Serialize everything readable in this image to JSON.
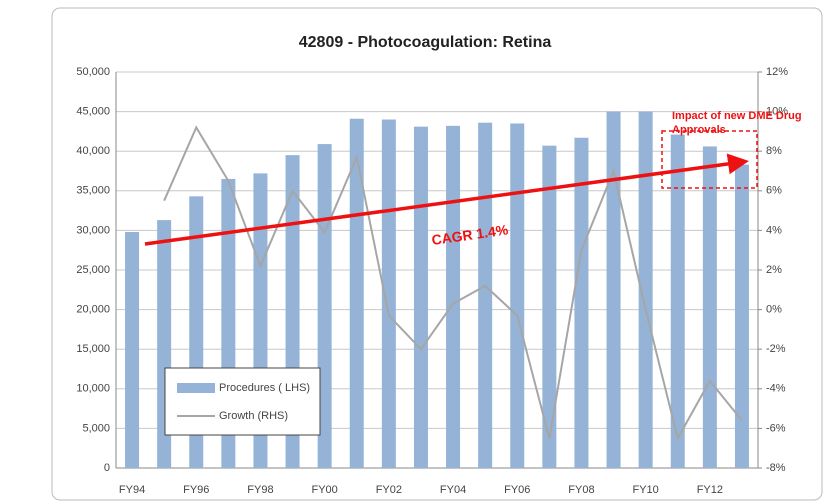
{
  "chart_data": {
    "type": "bar-line",
    "title": "42809 - Photocoagulation: Retina",
    "categories": [
      "FY94",
      null,
      "FY96",
      null,
      "FY98",
      null,
      "FY00",
      null,
      "FY02",
      null,
      "FY04",
      null,
      "FY06",
      null,
      "FY08",
      null,
      "FY10",
      null,
      "FY12",
      null
    ],
    "series": [
      {
        "name": "Procedures ( LHS)",
        "color": "#95b3d7",
        "type": "bar",
        "axis": "y",
        "values": [
          29800,
          31300,
          34300,
          36500,
          37200,
          39500,
          40900,
          44100,
          44000,
          43100,
          43200,
          43600,
          43500,
          40700,
          41700,
          45000,
          45000,
          42100,
          40600,
          38300
        ]
      },
      {
        "name": "Growth (RHS)",
        "color": "#a6a6a6",
        "type": "line",
        "axis": "y2",
        "values": [
          null,
          5.5,
          9.2,
          6.5,
          2.2,
          6.0,
          3.9,
          7.7,
          -0.3,
          -2.0,
          0.3,
          1.2,
          -0.3,
          -6.5,
          3.0,
          7.0,
          0.0,
          -6.5,
          -3.6,
          -5.6
        ]
      }
    ],
    "ylim": [
      0,
      50000
    ],
    "yticks": [
      {
        "value": 0,
        "label": "0"
      },
      {
        "value": 5000,
        "label": "5,000"
      },
      {
        "value": 10000,
        "label": "10,000"
      },
      {
        "value": 15000,
        "label": "15,000"
      },
      {
        "value": 20000,
        "label": "20,000"
      },
      {
        "value": 25000,
        "label": "25,000"
      },
      {
        "value": 30000,
        "label": "30,000"
      },
      {
        "value": 35000,
        "label": "35,000"
      },
      {
        "value": 40000,
        "label": "40,000"
      },
      {
        "value": 45000,
        "label": "45,000"
      },
      {
        "value": 50000,
        "label": "50,000"
      }
    ],
    "y2lim": [
      -8,
      12
    ],
    "y2ticks": [
      {
        "value": -8,
        "label": "-8%"
      },
      {
        "value": -6,
        "label": "-6%"
      },
      {
        "value": -4,
        "label": "-4%"
      },
      {
        "value": -2,
        "label": "-2%"
      },
      {
        "value": 0,
        "label": "0%"
      },
      {
        "value": 2,
        "label": "2%"
      },
      {
        "value": 4,
        "label": "4%"
      },
      {
        "value": 6,
        "label": "6%"
      },
      {
        "value": 8,
        "label": "8%"
      },
      {
        "value": 10,
        "label": "10%"
      },
      {
        "value": 12,
        "label": "12%"
      }
    ],
    "grid": true,
    "legend": "lower left",
    "annotations": [
      "CAGR 1.4%",
      "Impact of new DME Drug",
      "Approvals"
    ]
  }
}
